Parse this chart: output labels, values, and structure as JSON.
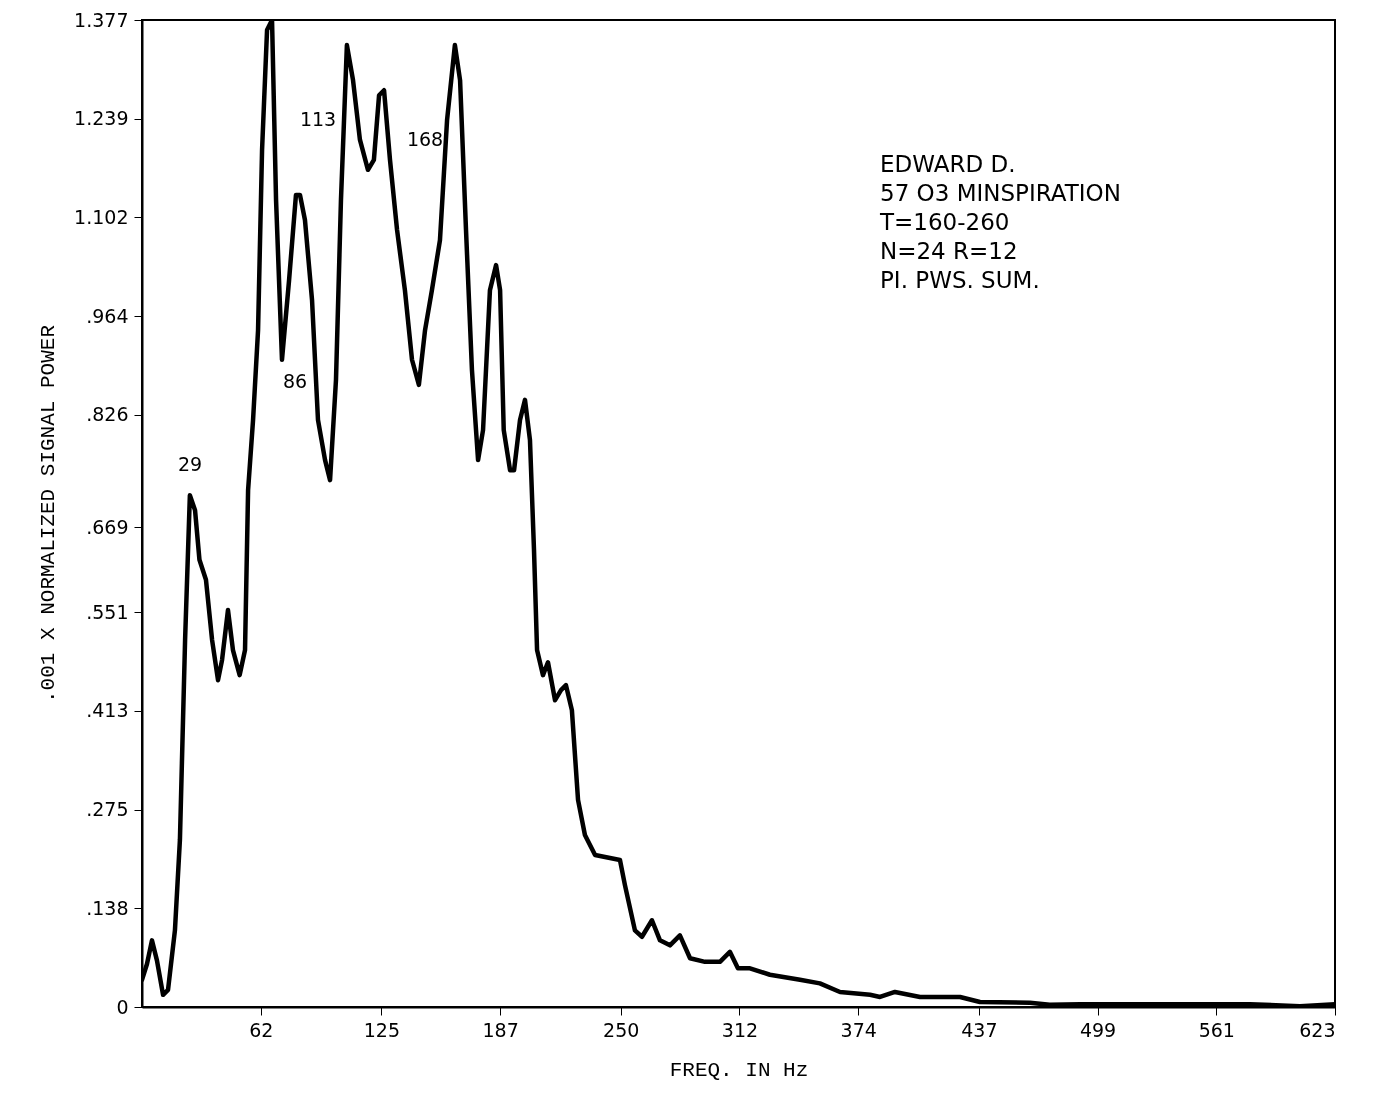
{
  "chart_data": {
    "type": "line",
    "xlabel": "FREQ.  IN Hz",
    "ylabel": ".001 X NORMALIZED SIGNAL POWER",
    "xlim": [
      0,
      623
    ],
    "xticks": [
      62,
      125,
      187,
      250,
      312,
      374,
      437,
      499,
      561,
      623
    ],
    "ylim": [
      0,
      1.377
    ],
    "yticks": [
      0,
      {
        "value": 0.138,
        "label": ".138"
      },
      {
        "value": 0.275,
        "label": ".275"
      },
      {
        "value": 0.413,
        "label": ".413"
      },
      {
        "value": 0.551,
        "label": ".551"
      },
      {
        "value": 0.669,
        "label": ".669"
      },
      {
        "value": 0.826,
        "label": ".826"
      },
      {
        "value": 0.964,
        "label": ".964"
      },
      1.102,
      1.239,
      1.377
    ],
    "grid": false,
    "marker": "none",
    "line_style": "solid",
    "x": [
      0,
      2.6,
      5.2,
      7.8,
      11,
      13.6,
      17.2,
      19.8,
      22.5,
      25,
      27.7,
      30,
      33.4,
      36.6,
      39.7,
      41.8,
      44.9,
      47.5,
      51,
      53.8,
      55.4,
      58,
      60.6,
      62.7,
      65.3,
      67.9,
      70,
      73.1,
      76.8,
      80.4,
      82.5,
      85.1,
      88.8,
      91.9,
      95.6,
      98.2,
      101.3,
      103.9,
      107,
      110.2,
      113.8,
      118,
      121.1,
      123.8,
      126.4,
      129.5,
      133.2,
      137.3,
      141,
      144.6,
      147.8,
      151.4,
      155.6,
      159.3,
      163.4,
      166.1,
      169.2,
      172.3,
      175.5,
      178.1,
      181.7,
      184.9,
      187,
      188.9,
      192.2,
      194.3,
      197.4,
      200,
      202.6,
      204.7,
      206.3,
      209.4,
      212,
      215.7,
      218.8,
      221.4,
      224.5,
      227.7,
      231.3,
      236.6,
      249.6,
      252.2,
      257.4,
      261.1,
      266.3,
      270.5,
      275.7,
      280.9,
      286.2,
      294,
      301.8,
      307,
      311.2,
      317.5,
      327.9,
      343.6,
      354,
      364.5,
      380.2,
      385.4,
      393.2,
      406.3,
      427.2,
      437.6,
      463.7,
      474,
      490,
      510.7,
      531.6,
      552.5,
      578.6,
      604.7,
      623
    ],
    "series": [
      {
        "color": "#000000",
        "values": [
          0.038,
          0.06,
          0.093,
          0.065,
          0.017,
          0.024,
          0.107,
          0.233,
          0.512,
          0.714,
          0.693,
          0.624,
          0.596,
          0.512,
          0.456,
          0.484,
          0.554,
          0.498,
          0.463,
          0.498,
          0.721,
          0.819,
          0.944,
          1.196,
          1.363,
          1.377,
          1.126,
          0.903,
          1.014,
          1.133,
          1.133,
          1.098,
          0.986,
          0.819,
          0.763,
          0.735,
          0.875,
          1.126,
          1.342,
          1.293,
          1.21,
          1.168,
          1.182,
          1.272,
          1.279,
          1.182,
          1.084,
          1.0,
          0.903,
          0.868,
          0.944,
          1.0,
          1.07,
          1.237,
          1.342,
          1.293,
          1.084,
          0.889,
          0.763,
          0.805,
          1.0,
          1.035,
          1.0,
          0.805,
          0.749,
          0.749,
          0.819,
          0.847,
          0.791,
          0.638,
          0.498,
          0.463,
          0.481,
          0.428,
          0.442,
          0.449,
          0.414,
          0.289,
          0.24,
          0.212,
          0.205,
          0.17,
          0.107,
          0.098,
          0.121,
          0.093,
          0.086,
          0.1,
          0.068,
          0.063,
          0.063,
          0.077,
          0.054,
          0.054,
          0.045,
          0.038,
          0.033,
          0.021,
          0.017,
          0.014,
          0.021,
          0.014,
          0.014,
          0.007,
          0.006,
          0.003,
          0.004,
          0.004,
          0.004,
          0.004,
          0.004,
          0.001,
          0.004
        ]
      }
    ],
    "annotations": [
      "29",
      "86",
      "113",
      "168",
      "EDWARD  D.",
      "57 O3 MINSPIRATION",
      "T=160-260",
      "N=24  R=12",
      "PI.  PWS.  SUM."
    ]
  }
}
